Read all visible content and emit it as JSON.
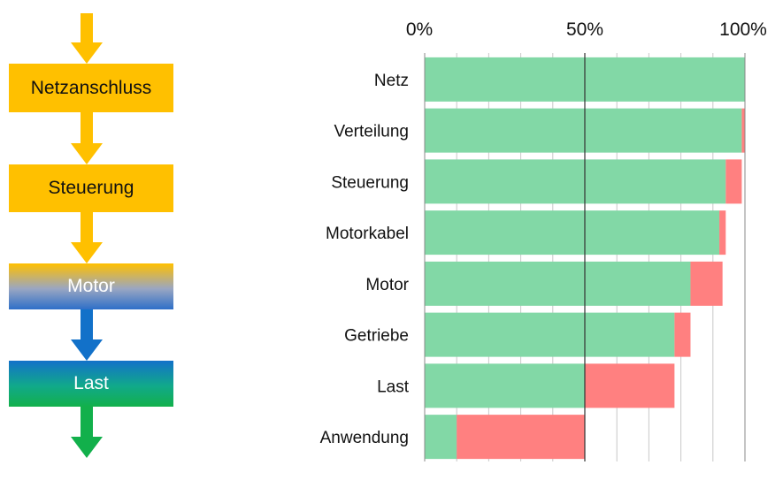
{
  "flow": {
    "steps": [
      {
        "label": "Netzanschluss"
      },
      {
        "label": "Steuerung"
      },
      {
        "label": "Motor"
      },
      {
        "label": "Last"
      }
    ],
    "colors": {
      "yellow": "#FFC000",
      "blue": "#1271C9",
      "green": "#12B04B"
    }
  },
  "chart_data": {
    "type": "bar",
    "orientation": "horizontal",
    "stacked": true,
    "categories": [
      "Netz",
      "Verteilung",
      "Steuerung",
      "Motorkabel",
      "Motor",
      "Getriebe",
      "Last",
      "Anwendung"
    ],
    "series": [
      {
        "color": "#82D8A6",
        "values": [
          100,
          99,
          94,
          92,
          83,
          78,
          50,
          10
        ]
      },
      {
        "color": "#FF8080",
        "values": [
          0,
          1,
          5,
          2,
          10,
          5,
          28,
          40
        ]
      }
    ],
    "xaxis": {
      "ticks": [
        "0%",
        "50%",
        "100%"
      ],
      "range": [
        0,
        100
      ],
      "position": "top"
    },
    "grid": true
  }
}
